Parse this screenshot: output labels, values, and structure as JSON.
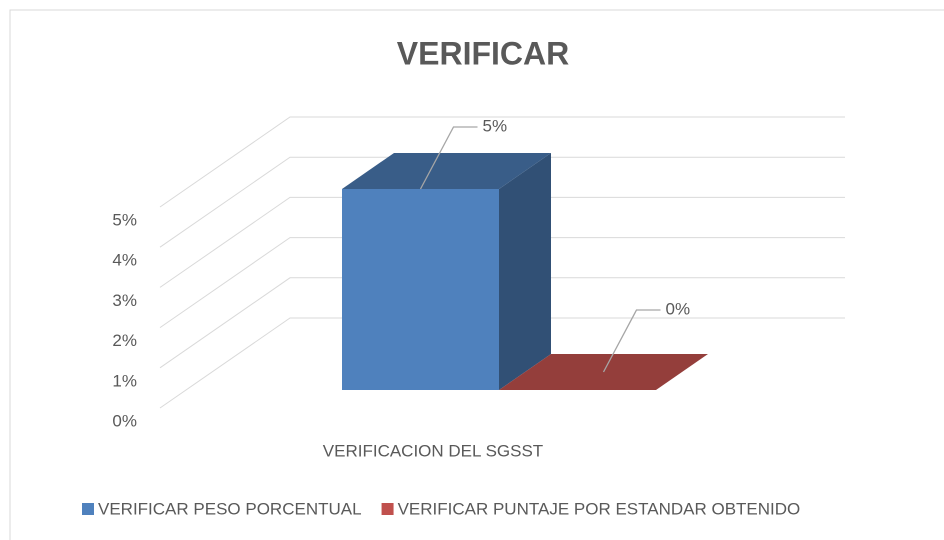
{
  "chart_data": {
    "type": "bar3d",
    "title": "VERIFICAR",
    "categories": [
      "VERIFICACION DEL SGSST"
    ],
    "series": [
      {
        "name": "VERIFICAR PESO PORCENTUAL",
        "color": "#4f81bd",
        "values": [
          5
        ],
        "value_labels": [
          "5%"
        ]
      },
      {
        "name": "VERIFICAR PUNTAJE POR ESTANDAR OBTENIDO",
        "color": "#c0504d",
        "values": [
          0
        ],
        "value_labels": [
          "0%"
        ]
      }
    ],
    "ylim": [
      0,
      5
    ],
    "yticks": [
      {
        "value": 0,
        "label": "0%"
      },
      {
        "value": 1,
        "label": "1%"
      },
      {
        "value": 2,
        "label": "2%"
      },
      {
        "value": 3,
        "label": "3%"
      },
      {
        "value": 4,
        "label": "4%"
      },
      {
        "value": 5,
        "label": "5%"
      }
    ],
    "grid": true,
    "legend": "bottom"
  }
}
